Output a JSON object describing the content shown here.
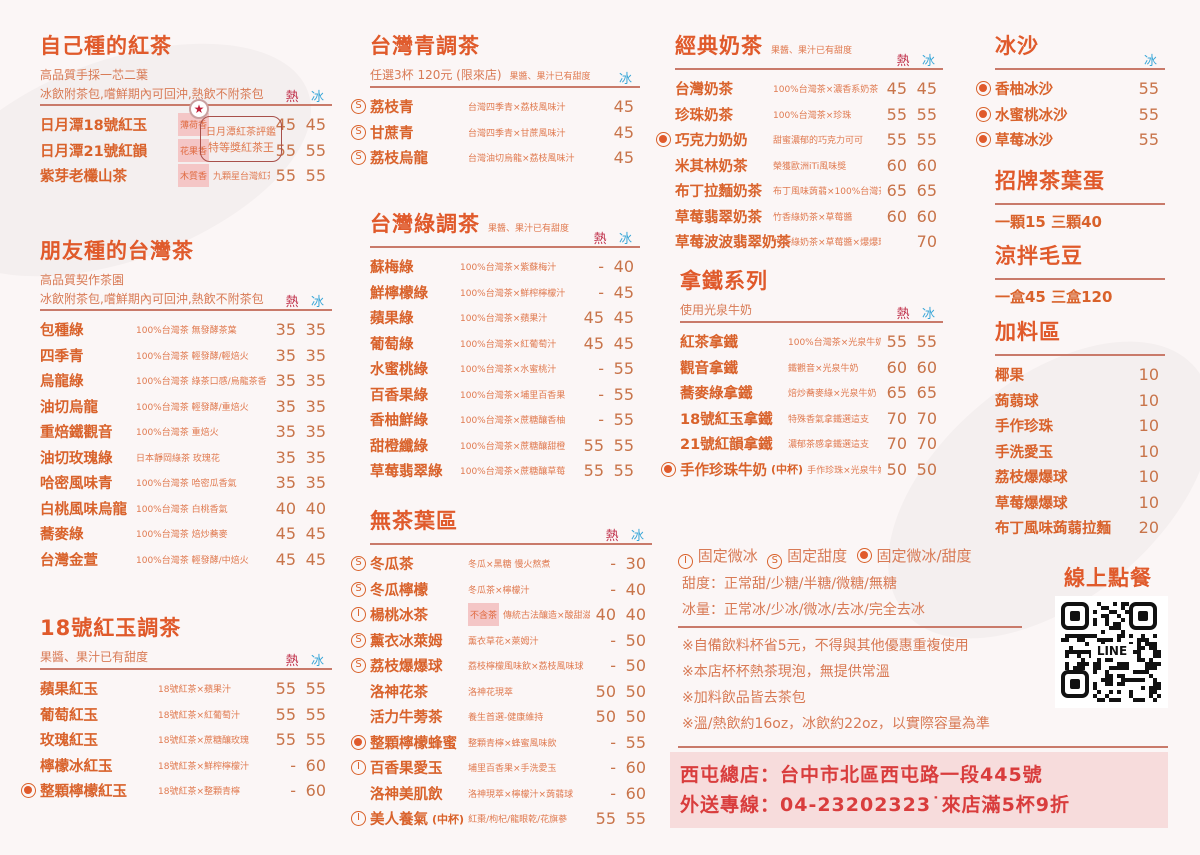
{
  "colors": {
    "accent": "#e05a2b",
    "hot": "#c0304a",
    "ice": "#3aa7d8",
    "address_bg": "#f7dcdc"
  },
  "labels": {
    "hot": "熱",
    "ice": "冰"
  },
  "sections": {
    "s1": {
      "title": "自己種的紅茶",
      "sub": [
        "高品質手採一芯二葉",
        "冰飲附茶包,嚐鮮期內可回沖,熱飲不附茶包"
      ],
      "hot": true,
      "ice": true,
      "award": {
        "icon": "award-ribbon-icon",
        "lines": [
          "日月潭紅茶評鑑",
          "特等獎紅茶王"
        ]
      },
      "items": [
        {
          "name": "日月潭18號紅玉",
          "tag": "薄荷香",
          "desc": "",
          "hot": "45",
          "ice": "45"
        },
        {
          "name": "日月潭21號紅韻",
          "tag": "花果香",
          "desc": "",
          "hot": "55",
          "ice": "55"
        },
        {
          "name": "紫芽老欉山茶",
          "tag": "木質香",
          "desc": "九顆星台灣紅茶",
          "hot": "55",
          "ice": "55"
        }
      ]
    },
    "s2": {
      "title": "朋友種的台灣茶",
      "sub": [
        "高品質契作茶園",
        "冰飲附茶包,嚐鮮期內可回沖,熱飲不附茶包"
      ],
      "hot": true,
      "ice": true,
      "items": [
        {
          "name": "包種綠",
          "desc": "100%台灣茶 無發酵茶葉",
          "hot": "35",
          "ice": "35"
        },
        {
          "name": "四季青",
          "desc": "100%台灣茶 輕發酵/輕焙火",
          "hot": "35",
          "ice": "35"
        },
        {
          "name": "烏龍綠",
          "desc": "100%台灣茶 綠茶口感/烏龍茶香",
          "hot": "35",
          "ice": "35"
        },
        {
          "name": "油切烏龍",
          "desc": "100%台灣茶 輕發酵/重焙火",
          "hot": "35",
          "ice": "35"
        },
        {
          "name": "重焙鐵觀音",
          "desc": "100%台灣茶 重焙火",
          "hot": "35",
          "ice": "35"
        },
        {
          "name": "油切玫瑰綠",
          "desc": "日本靜岡綠茶 玫瑰花",
          "hot": "35",
          "ice": "35"
        },
        {
          "name": "哈密風味青",
          "desc": "100%台灣茶 哈密瓜香氣",
          "hot": "35",
          "ice": "35"
        },
        {
          "name": "白桃風味烏龍",
          "desc": "100%台灣茶 白桃香氣",
          "hot": "40",
          "ice": "40"
        },
        {
          "name": "蕎麥綠",
          "desc": "100%台灣茶 焙炒蕎麥",
          "hot": "45",
          "ice": "45"
        },
        {
          "name": "台灣金萱",
          "desc": "100%台灣茶 輕發酵/中焙火",
          "hot": "45",
          "ice": "45"
        }
      ]
    },
    "s3": {
      "title": "18號紅玉調茶",
      "sub": [
        "果醬、果汁已有甜度"
      ],
      "hot": true,
      "ice": true,
      "items": [
        {
          "name": "蘋果紅玉",
          "desc": "18號紅茶×蘋果汁",
          "hot": "55",
          "ice": "55"
        },
        {
          "name": "葡萄紅玉",
          "desc": "18號紅茶×紅葡萄汁",
          "hot": "55",
          "ice": "55"
        },
        {
          "name": "玫瑰紅玉",
          "desc": "18號紅茶×蔗糖釀玫瑰",
          "hot": "55",
          "ice": "55"
        },
        {
          "name": "檸檬冰紅玉",
          "desc": "18號紅茶×鮮榨檸檬汁",
          "hot": "-",
          "ice": "60"
        },
        {
          "mark": "dot",
          "name": "整顆檸檬紅玉",
          "desc": "18號紅茶×整顆青檸",
          "hot": "-",
          "ice": "60"
        }
      ]
    },
    "s4": {
      "title": "台灣青調茶",
      "sub": [
        "任選3杯 120元 (限來店)"
      ],
      "note": "果醬、果汁已有甜度",
      "hot": false,
      "ice": true,
      "items": [
        {
          "mark": "S",
          "name": "荔枝青",
          "desc": "台灣四季青×荔枝風味汁",
          "hot": "",
          "ice": "45"
        },
        {
          "mark": "S",
          "name": "甘蔗青",
          "desc": "台灣四季青×甘蔗風味汁",
          "hot": "",
          "ice": "45"
        },
        {
          "mark": "S",
          "name": "荔枝烏龍",
          "desc": "台灣油切烏龍×荔枝風味汁",
          "hot": "",
          "ice": "45"
        }
      ]
    },
    "s5": {
      "title": "台灣綠調茶",
      "note": "果醬、果汁已有甜度",
      "hot": true,
      "ice": true,
      "items": [
        {
          "name": "蘇梅綠",
          "desc": "100%台灣茶×紫蘇梅汁",
          "hot": "-",
          "ice": "40"
        },
        {
          "name": "鮮檸檬綠",
          "desc": "100%台灣茶×鮮榨檸檬汁",
          "hot": "-",
          "ice": "45"
        },
        {
          "name": "蘋果綠",
          "desc": "100%台灣茶×蘋果汁",
          "hot": "45",
          "ice": "45"
        },
        {
          "name": "葡萄綠",
          "desc": "100%台灣茶×紅葡萄汁",
          "hot": "45",
          "ice": "45"
        },
        {
          "name": "水蜜桃綠",
          "desc": "100%台灣茶×水蜜桃汁",
          "hot": "-",
          "ice": "55"
        },
        {
          "name": "百香果綠",
          "desc": "100%台灣茶×埔里百香果",
          "hot": "-",
          "ice": "55"
        },
        {
          "name": "香柚鮮綠",
          "desc": "100%台灣茶×蔗糖釀香柚",
          "hot": "-",
          "ice": "55"
        },
        {
          "name": "甜橙纖綠",
          "desc": "100%台灣茶×蔗糖釀甜橙",
          "hot": "55",
          "ice": "55"
        },
        {
          "name": "草莓翡翠綠",
          "desc": "100%台灣茶×蔗糖釀草莓",
          "hot": "55",
          "ice": "55"
        }
      ]
    },
    "s6": {
      "title": "無茶葉區",
      "hot": true,
      "ice": true,
      "items": [
        {
          "mark": "S",
          "name": "冬瓜茶",
          "desc": "冬瓜×黑糖 慢火熬煮",
          "hot": "-",
          "ice": "30"
        },
        {
          "mark": "S",
          "name": "冬瓜檸檬",
          "desc": "冬瓜茶×檸檬汁",
          "hot": "-",
          "ice": "40"
        },
        {
          "mark": "I",
          "name": "楊桃冰茶",
          "tag": "不含茶",
          "desc": "傳統古法釀造×酸甜滋味",
          "hot": "40",
          "ice": "40"
        },
        {
          "mark": "S",
          "name": "薰衣冰萊姆",
          "desc": "薰衣草花×萊姆汁",
          "hot": "-",
          "ice": "50"
        },
        {
          "mark": "S",
          "name": "荔枝爆爆球",
          "desc": "荔枝檸檬風味飲×荔枝風味球",
          "hot": "-",
          "ice": "50"
        },
        {
          "name": "洛神花茶",
          "desc": "洛神花現萃",
          "hot": "50",
          "ice": "50"
        },
        {
          "name": "活力牛蒡茶",
          "desc": "養生首選-健康維持",
          "hot": "50",
          "ice": "50"
        },
        {
          "mark": "dot",
          "name": "整顆檸檬蜂蜜",
          "desc": "整顆青檸×蜂蜜風味飲",
          "hot": "-",
          "ice": "55"
        },
        {
          "mark": "I",
          "name": "百香果愛玉",
          "desc": "埔里百香果×手洗愛玉",
          "hot": "-",
          "ice": "60"
        },
        {
          "name": "洛神美肌飲",
          "desc": "洛神現萃×檸檬汁×蒟蒻球",
          "hot": "-",
          "ice": "60"
        },
        {
          "mark": "I",
          "name": "美人養氣",
          "size": "(中杯)",
          "desc": "紅棗/枸杞/龍眼乾/花旗蔘",
          "hot": "55",
          "ice": "55"
        }
      ]
    },
    "s7": {
      "title": "經典奶茶",
      "note": "果醬、果汁已有甜度",
      "hot": true,
      "ice": true,
      "items": [
        {
          "name": "台灣奶茶",
          "desc": "100%台灣茶×濃香系奶茶",
          "hot": "45",
          "ice": "45"
        },
        {
          "name": "珍珠奶茶",
          "desc": "100%台灣茶×珍珠",
          "hot": "55",
          "ice": "55"
        },
        {
          "mark": "dot",
          "name": "巧克力奶奶",
          "desc": "甜蜜濃郁的巧克力可可",
          "hot": "55",
          "ice": "55"
        },
        {
          "name": "米其林奶茶",
          "desc": "榮獲歐洲iTi風味獎",
          "hot": "60",
          "ice": "60"
        },
        {
          "name": "布丁拉麵奶茶",
          "desc": "布丁風味蒟蒻×100%台灣茶",
          "hot": "65",
          "ice": "65"
        },
        {
          "name": "草莓翡翠奶茶",
          "desc": "竹香綠奶茶×草莓醬",
          "hot": "60",
          "ice": "60"
        },
        {
          "name": "草莓波波翡翠奶茶",
          "desc": "竹香綠奶茶×草莓醬×爆爆球",
          "hot": "",
          "ice": "70"
        }
      ]
    },
    "s8": {
      "title": "拿鐵系列",
      "sub": [
        "使用光泉牛奶"
      ],
      "hot": true,
      "ice": true,
      "items": [
        {
          "name": "紅茶拿鐵",
          "desc": "100%台灣茶×光泉牛奶",
          "hot": "55",
          "ice": "55"
        },
        {
          "name": "觀音拿鐵",
          "desc": "鐵觀音×光泉牛奶",
          "hot": "60",
          "ice": "60"
        },
        {
          "name": "蕎麥綠拿鐵",
          "desc": "焙炒蕎麥綠×光泉牛奶",
          "hot": "65",
          "ice": "65"
        },
        {
          "name": "18號紅玉拿鐵",
          "desc": "特殊香氣拿鐵選這支",
          "hot": "70",
          "ice": "70"
        },
        {
          "name": "21號紅韻拿鐵",
          "desc": "濃郁茶感拿鐵選這支",
          "hot": "70",
          "ice": "70"
        },
        {
          "mark": "dot",
          "name": "手作珍珠牛奶",
          "size": "(中杯)",
          "desc": "手作珍珠×光泉牛奶",
          "hot": "50",
          "ice": "50"
        }
      ]
    },
    "s9": {
      "title": "冰沙",
      "hot": false,
      "ice": true,
      "items": [
        {
          "mark": "dot",
          "name": "香柚冰沙",
          "desc": "",
          "hot": "",
          "ice": "55"
        },
        {
          "mark": "dot",
          "name": "水蜜桃冰沙",
          "desc": "",
          "hot": "",
          "ice": "55"
        },
        {
          "mark": "dot",
          "name": "草莓冰沙",
          "desc": "",
          "hot": "",
          "ice": "55"
        }
      ]
    },
    "s10": {
      "title": "招牌茶葉蛋",
      "text": "一顆15  三顆40"
    },
    "s11": {
      "title": "涼拌毛豆",
      "text": "一盒45 三盒120"
    },
    "s12": {
      "title": "加料區",
      "items": [
        {
          "name": "椰果",
          "desc": "",
          "hot": "",
          "ice": "10"
        },
        {
          "name": "蒟蒻球",
          "desc": "",
          "hot": "",
          "ice": "10"
        },
        {
          "name": "手作珍珠",
          "desc": "",
          "hot": "",
          "ice": "10"
        },
        {
          "name": "手洗愛玉",
          "desc": "",
          "hot": "",
          "ice": "10"
        },
        {
          "name": "荔枝爆爆球",
          "desc": "",
          "hot": "",
          "ice": "10"
        },
        {
          "name": "草莓爆爆球",
          "desc": "",
          "hot": "",
          "ice": "10"
        },
        {
          "name": "布丁風味蒟蒻拉麵",
          "desc": "",
          "hot": "",
          "ice": "20"
        }
      ]
    }
  },
  "legend": {
    "fixed_ice": "固定微冰",
    "fixed_sweet": "固定甜度",
    "fixed_both": "固定微冰/甜度",
    "sweetness": "甜度：正常甜/少糖/半糖/微糖/無糖",
    "ice_level": "冰量：正常冰/少冰/微冰/去冰/完全去冰"
  },
  "notes": [
    "※自備飲料杯省5元，不得與其他優惠重複使用",
    "※本店杯杯熱茶現泡，無提供常溫",
    "※加料飲品皆去茶包",
    "※溫/熱飲約16oz，冰飲約22oz，以實際容量為準"
  ],
  "online": {
    "title": "線上點餐",
    "qr_logo": "LINE"
  },
  "store": {
    "address": "西屯總店：台中市北區西屯路一段445號",
    "delivery": "外送專線：04-23202323˙來店滿5杯9折"
  }
}
